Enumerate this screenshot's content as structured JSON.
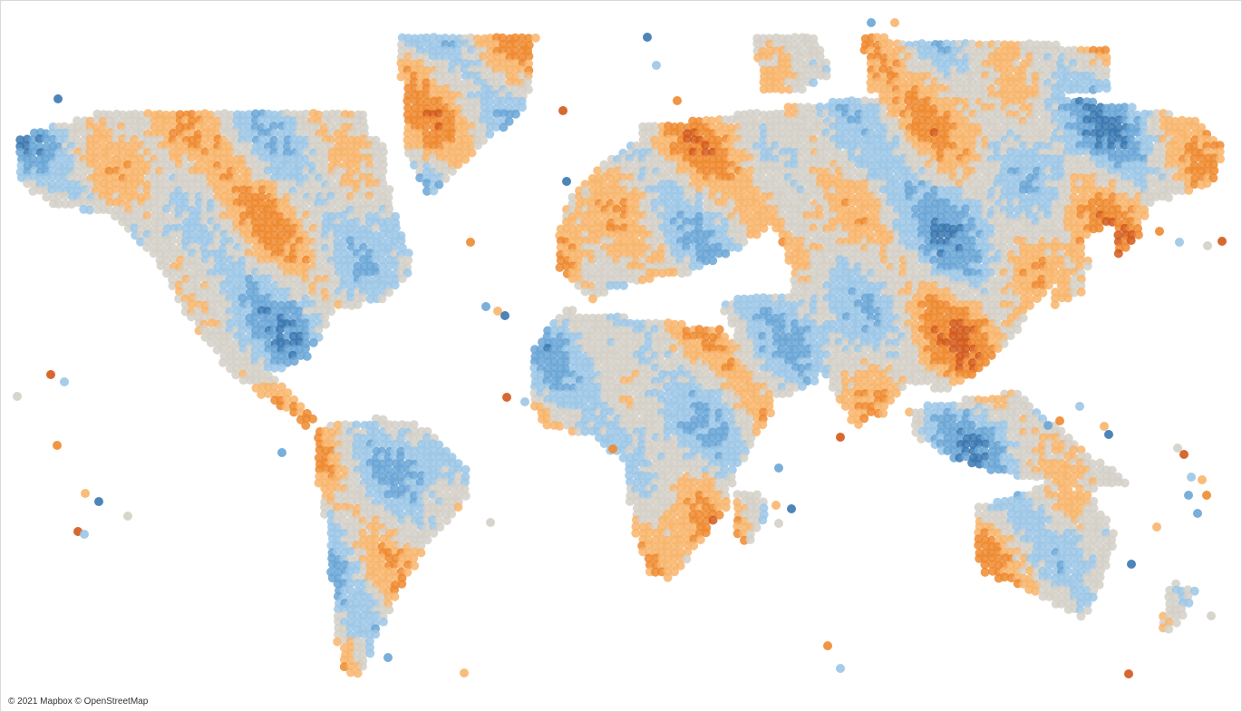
{
  "map": {
    "attribution": "© 2021 Mapbox © OpenStreetMap",
    "palette": {
      "blue_dark": "#3a78b0",
      "blue": "#6aa6d6",
      "blue_light": "#9cc7e6",
      "neutral": "#d4d0c8",
      "orange_light": "#f8b56c",
      "orange": "#ef8a2f",
      "orange_dark": "#d2591a"
    }
  }
}
